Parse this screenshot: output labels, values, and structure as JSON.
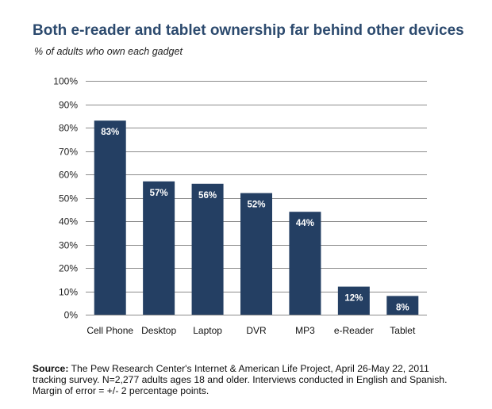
{
  "chart_data": {
    "type": "bar",
    "title": "Both e-reader and tablet ownership far behind other devices",
    "subtitle": "% of adults who own each gadget",
    "categories": [
      "Cell Phone",
      "Desktop",
      "Laptop",
      "DVR",
      "MP3",
      "e-Reader",
      "Tablet"
    ],
    "values": [
      83,
      57,
      56,
      52,
      44,
      12,
      8
    ],
    "data_labels": [
      "83%",
      "57%",
      "56%",
      "52%",
      "44%",
      "12%",
      "8%"
    ],
    "ylim": [
      0,
      100
    ],
    "yticks": [
      0,
      10,
      20,
      30,
      40,
      50,
      60,
      70,
      80,
      90,
      100
    ],
    "ytick_labels": [
      "0%",
      "10%",
      "20%",
      "30%",
      "40%",
      "50%",
      "60%",
      "70%",
      "80%",
      "90%",
      "100%"
    ],
    "xlabel": "",
    "ylabel": "",
    "grid": true,
    "bar_color": "#243f63",
    "grid_color": "#8c8c8c"
  },
  "source": {
    "label": "Source:",
    "text": " The Pew Research Center's Internet & American Life Project, April 26-May 22, 2011 tracking survey. N=2,277 adults ages 18 and older. Interviews conducted in English and Spanish. Margin of error = +/- 2 percentage points."
  }
}
